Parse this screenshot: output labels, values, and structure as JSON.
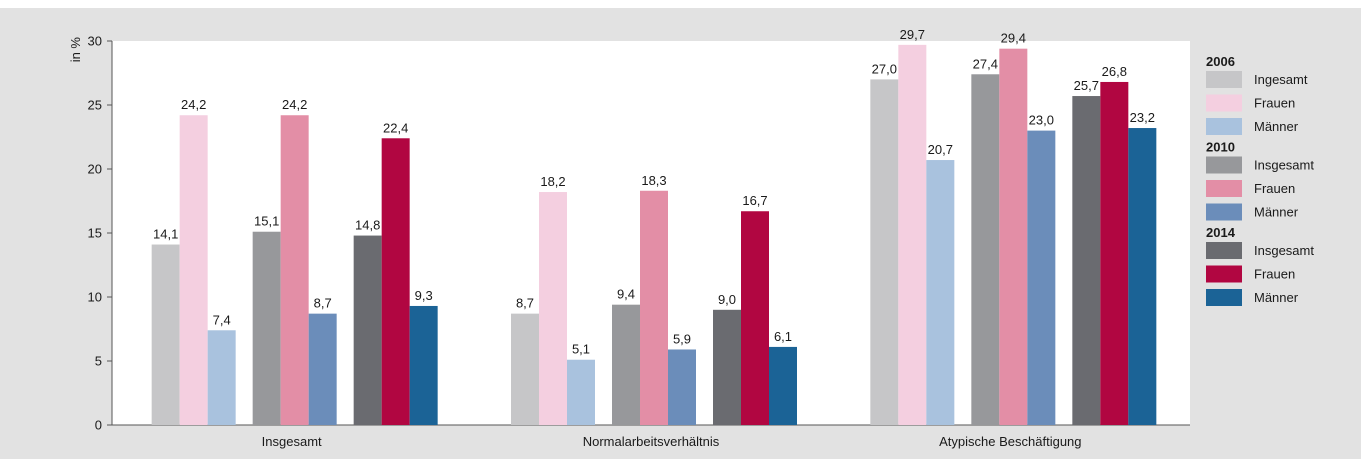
{
  "chart_data": {
    "type": "bar",
    "ylabel": "in %",
    "ylim": [
      0,
      30
    ],
    "yticks": [
      0,
      5,
      10,
      15,
      20,
      25,
      30
    ],
    "grid": false,
    "legend_position": "right",
    "categories": [
      "Insgesamt",
      "Normalarbeitsverhältnis",
      "Atypische Beschäftigung"
    ],
    "series": [
      {
        "group": "2006",
        "name": "Ingesamt",
        "color": "#c6c6c8",
        "values": [
          14.1,
          8.7,
          27.0
        ],
        "labels": [
          "14,1",
          "8,7",
          "27,0"
        ]
      },
      {
        "group": "2006",
        "name": "Frauen",
        "color": "#f4cfe0",
        "values": [
          24.2,
          18.2,
          29.7
        ],
        "labels": [
          "24,2",
          "18,2",
          "29,7"
        ]
      },
      {
        "group": "2006",
        "name": "Männer",
        "color": "#a9c2de",
        "values": [
          7.4,
          5.1,
          20.7
        ],
        "labels": [
          "7,4",
          "5,1",
          "20,7"
        ]
      },
      {
        "group": "2010",
        "name": "Insgesamt",
        "color": "#97989b",
        "values": [
          15.1,
          9.4,
          27.4
        ],
        "labels": [
          "15,1",
          "9,4",
          "27,4"
        ]
      },
      {
        "group": "2010",
        "name": "Frauen",
        "color": "#e38ea6",
        "values": [
          24.2,
          18.3,
          29.4
        ],
        "labels": [
          "24,2",
          "18,3",
          "29,4"
        ]
      },
      {
        "group": "2010",
        "name": "Männer",
        "color": "#6b8dba",
        "values": [
          8.7,
          5.9,
          23.0
        ],
        "labels": [
          "8,7",
          "5,9",
          "23,0"
        ]
      },
      {
        "group": "2014",
        "name": "Insgesamt",
        "color": "#6a6b70",
        "values": [
          14.8,
          9.0,
          25.7
        ],
        "labels": [
          "14,8",
          "9,0",
          "25,7"
        ]
      },
      {
        "group": "2014",
        "name": "Frauen",
        "color": "#b10641",
        "values": [
          22.4,
          16.7,
          26.8
        ],
        "labels": [
          "22,4",
          "16,7",
          "26,8"
        ]
      },
      {
        "group": "2014",
        "name": "Männer",
        "color": "#1b6396",
        "values": [
          9.3,
          6.1,
          23.2
        ],
        "labels": [
          "9,3",
          "6,1",
          "23,2"
        ]
      }
    ]
  }
}
